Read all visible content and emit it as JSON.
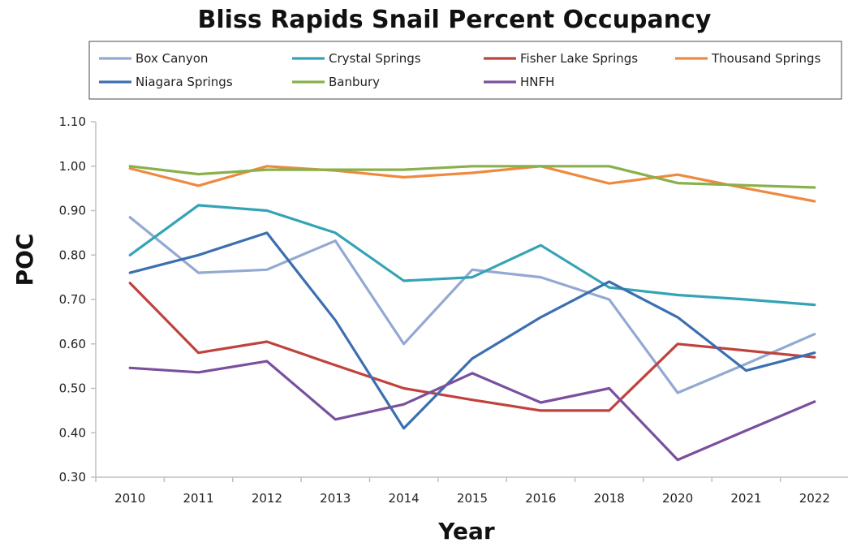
{
  "chart_data": {
    "type": "line",
    "title": "Bliss Rapids Snail Percent Occupancy",
    "xlabel": "Year",
    "ylabel": "POC",
    "categories": [
      "2010",
      "2011",
      "2012",
      "2013",
      "2014",
      "2015",
      "2016",
      "2018",
      "2020",
      "2021",
      "2022"
    ],
    "ylim": [
      0.3,
      1.1
    ],
    "yticks": [
      "0.30",
      "0.40",
      "0.50",
      "0.60",
      "0.70",
      "0.80",
      "0.90",
      "1.00",
      "1.10"
    ],
    "grid": false,
    "legend": "top, boxed",
    "series": [
      {
        "name": "Box Canyon",
        "color": "#93a9d2",
        "values": [
          0.885,
          0.76,
          0.767,
          0.832,
          0.6,
          0.767,
          0.75,
          0.7,
          0.49,
          0.555,
          0.622
        ]
      },
      {
        "name": "Crystal Springs",
        "color": "#35a3b6",
        "values": [
          0.8,
          0.912,
          0.9,
          0.85,
          0.742,
          0.75,
          0.822,
          0.727,
          0.71,
          0.7,
          0.688
        ]
      },
      {
        "name": "Fisher Lake Springs",
        "color": "#c0423d",
        "values": [
          0.737,
          0.58,
          0.605,
          0.552,
          0.5,
          0.474,
          0.45,
          0.45,
          0.6,
          0.585,
          0.57
        ]
      },
      {
        "name": "Thousand Springs",
        "color": "#ee8a3f",
        "values": [
          0.995,
          0.956,
          1.0,
          0.99,
          0.975,
          0.985,
          1.0,
          0.961,
          0.981,
          0.95,
          0.921
        ]
      },
      {
        "name": "Niagara Springs",
        "color": "#3c6fb0",
        "values": [
          0.76,
          0.8,
          0.85,
          0.653,
          0.41,
          0.567,
          0.66,
          0.74,
          0.66,
          0.54,
          0.58
        ]
      },
      {
        "name": "Banbury",
        "color": "#88b04b",
        "values": [
          1.0,
          0.982,
          0.992,
          0.992,
          0.992,
          1.0,
          1.0,
          1.0,
          0.962,
          0.957,
          0.952
        ]
      },
      {
        "name": "HNFH",
        "color": "#7a509e",
        "values": [
          0.546,
          0.536,
          0.561,
          0.43,
          0.464,
          0.534,
          0.468,
          0.5,
          0.339,
          0.405,
          0.47
        ]
      }
    ]
  }
}
